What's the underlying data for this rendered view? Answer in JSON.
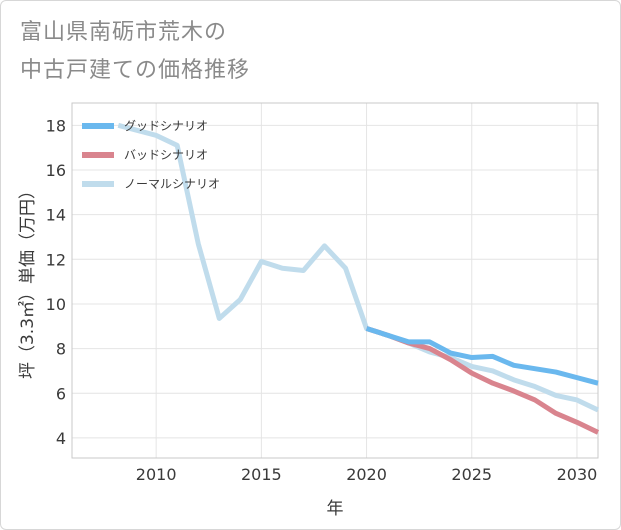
{
  "title_line1": "富山県南砺市荒木の",
  "title_line2": "中古戸建ての価格推移",
  "chart_data": {
    "type": "line",
    "title": "富山県南砺市荒木の中古戸建ての価格推移",
    "xlabel": "年",
    "ylabel": "坪（3.3㎡）単価（万円）",
    "xlim": [
      2006,
      2031
    ],
    "ylim": [
      3.1,
      19.0
    ],
    "x_ticks": [
      2010,
      2015,
      2020,
      2025,
      2030
    ],
    "y_ticks": [
      4,
      6,
      8,
      10,
      12,
      14,
      16,
      18
    ],
    "grid": true,
    "legend_position": "top-left",
    "series": [
      {
        "name": "グッドシナリオ",
        "color": "#6ab8ee",
        "x": [
          2020,
          2021,
          2022,
          2023,
          2024,
          2025,
          2026,
          2027,
          2028,
          2029,
          2030,
          2031
        ],
        "y": [
          8.9,
          8.6,
          8.3,
          8.3,
          7.8,
          7.6,
          7.65,
          7.25,
          7.1,
          6.95,
          6.7,
          6.45
        ]
      },
      {
        "name": "バッドシナリオ",
        "color": "#d9848e",
        "x": [
          2020,
          2021,
          2022,
          2023,
          2024,
          2025,
          2026,
          2027,
          2028,
          2029,
          2030,
          2031
        ],
        "y": [
          8.9,
          8.6,
          8.25,
          8.0,
          7.5,
          6.9,
          6.45,
          6.1,
          5.7,
          5.1,
          4.7,
          4.25
        ]
      },
      {
        "name": "ノーマルシナリオ",
        "color": "#c0dcec",
        "x": [
          2008.2,
          2009,
          2010,
          2011,
          2012,
          2013,
          2014,
          2015,
          2016,
          2017,
          2018,
          2019,
          2020,
          2021,
          2022,
          2023,
          2024,
          2025,
          2026,
          2027,
          2028,
          2029,
          2030,
          2031
        ],
        "y": [
          18.0,
          17.8,
          17.55,
          17.1,
          12.7,
          9.35,
          10.2,
          11.9,
          11.6,
          11.5,
          12.6,
          11.6,
          8.9,
          8.6,
          8.25,
          7.85,
          7.6,
          7.2,
          7.0,
          6.6,
          6.3,
          5.9,
          5.7,
          5.25
        ]
      }
    ]
  }
}
